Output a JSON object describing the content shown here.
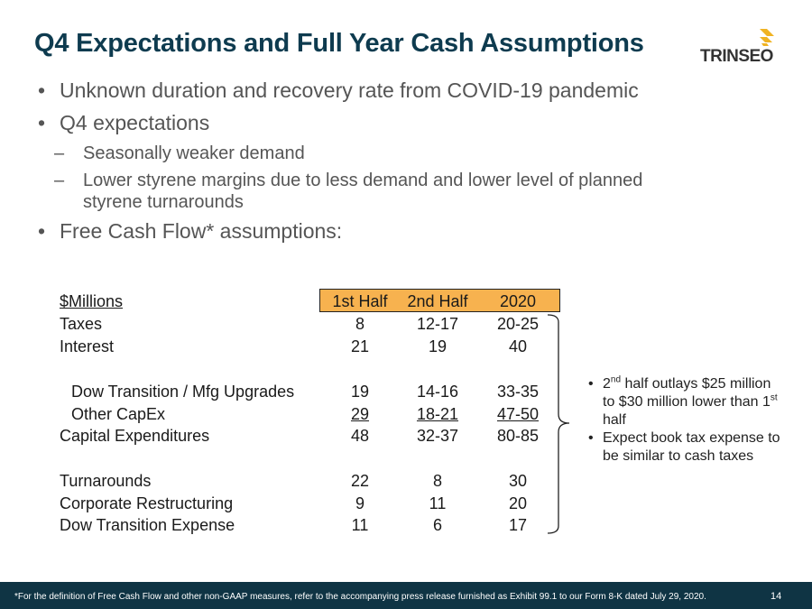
{
  "slide": {
    "title": "Q4 Expectations and Full Year Cash Assumptions",
    "logo_text": "TRINSEO",
    "brand_colors": {
      "title": "#0e3b4f",
      "accent": "#f7b24f",
      "logo_mark": "#f0b323",
      "footer": "#0f3444"
    }
  },
  "bullets": {
    "b1": "Unknown duration and recovery rate from COVID-19 pandemic",
    "b2": "Q4 expectations",
    "b2_sub1": "Seasonally weaker demand",
    "b2_sub2_line1": "Lower styrene margins due to less demand and lower level of planned",
    "b2_sub2_line2": "styrene turnarounds",
    "b3": "Free Cash Flow* assumptions:"
  },
  "table": {
    "header": {
      "label": "$Millions",
      "col1": "1st Half",
      "col2": "2nd Half",
      "col3": "2020"
    },
    "rows": [
      {
        "label": "Taxes",
        "v1": "8",
        "v2": "12-17",
        "v3": "20-25"
      },
      {
        "label": "Interest",
        "v1": "21",
        "v2": "19",
        "v3": "40"
      },
      {
        "label": "Dow Transition / Mfg Upgrades",
        "v1": "19",
        "v2": "14-16",
        "v3": "33-35"
      },
      {
        "label": "Other CapEx",
        "v1": "29",
        "v2": "18-21",
        "v3": "47-50"
      },
      {
        "label": "Capital Expenditures",
        "v1": "48",
        "v2": "32-37",
        "v3": "80-85"
      },
      {
        "label": "Turnarounds",
        "v1": "22",
        "v2": "8",
        "v3": "30"
      },
      {
        "label": "Corporate Restructuring",
        "v1": "9",
        "v2": "11",
        "v3": "20"
      },
      {
        "label": "Dow Transition Expense",
        "v1": "11",
        "v2": "6",
        "v3": "17"
      }
    ]
  },
  "notes": {
    "n1_a": "2",
    "n1_sup1": "nd",
    "n1_b": " half outlays $25 million to $30 million lower than 1",
    "n1_sup2": "st",
    "n1_c": " half",
    "n2": "Expect book tax expense to be similar to cash taxes"
  },
  "footer": {
    "footnote": "*For the definition of Free Cash Flow and other non-GAAP measures, refer to the accompanying press release furnished as Exhibit 99.1 to our Form 8-K dated July 29, 2020.",
    "page": "14"
  }
}
